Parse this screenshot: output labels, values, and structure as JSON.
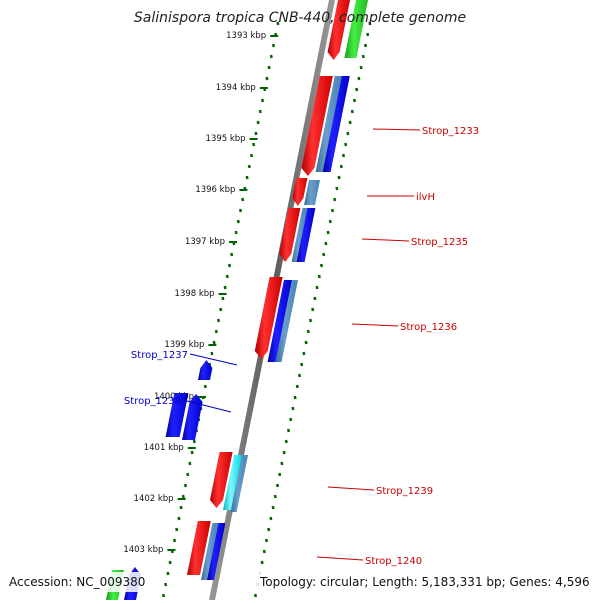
{
  "header": {
    "title": "Salinispora tropica CNB-440, complete genome"
  },
  "footer": {
    "accession": "Accession: NC_009380",
    "summary": "Topology: circular; Length: 5,183,331 bp; Genes: 4,596"
  },
  "ruler": {
    "unit_labels": [
      "1393 kbp",
      "1394 kbp",
      "1395 kbp",
      "1396 kbp",
      "1397 kbp",
      "1398 kbp",
      "1399 kbp",
      "1400 kbp",
      "1401 kbp",
      "1402 kbp",
      "1403 kbp"
    ]
  },
  "gene_labels": [
    {
      "text": "Strop_1233",
      "color": "#cc0000"
    },
    {
      "text": "ilvH",
      "color": "#cc0000"
    },
    {
      "text": "Strop_1235",
      "color": "#cc0000"
    },
    {
      "text": "Strop_1236",
      "color": "#cc0000"
    },
    {
      "text": "Strop_1237",
      "color": "#0000cc"
    },
    {
      "text": "Strop_1238",
      "color": "#0000cc"
    },
    {
      "text": "Strop_1239",
      "color": "#cc0000"
    },
    {
      "text": "Strop_1240",
      "color": "#cc0000"
    }
  ],
  "colors": {
    "forward_cds": "#ff0000",
    "reverse_cds": "#0000ff",
    "rna": "#22cc22",
    "steelblue_track": "#4682b4",
    "cyan_track": "#00e5ee",
    "backbone": "#808080",
    "tick": "#006400"
  }
}
